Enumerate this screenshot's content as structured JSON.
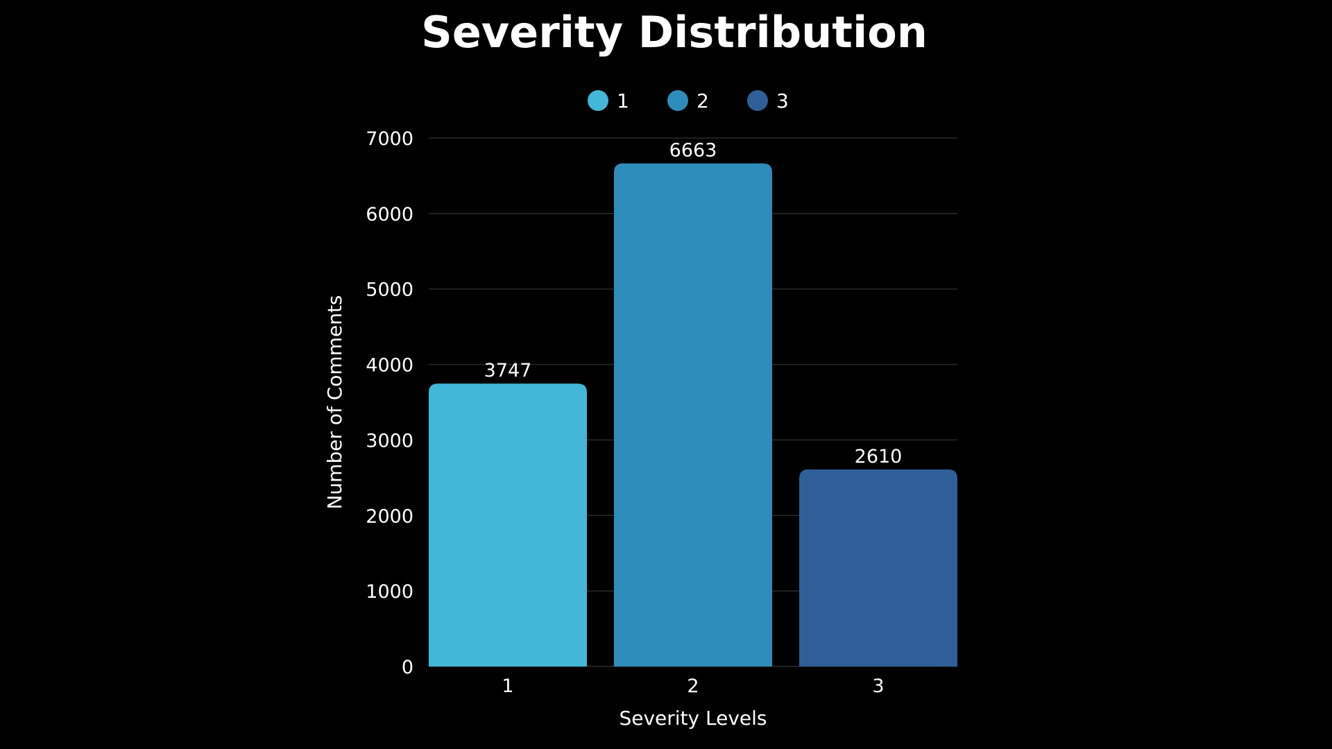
{
  "chart_data": {
    "type": "bar",
    "title": "Severity Distribution",
    "xlabel": "Severity Levels",
    "ylabel": "Number of Comments",
    "categories": [
      "1",
      "2",
      "3"
    ],
    "values": [
      3747,
      6663,
      2610
    ],
    "data_labels": [
      "3747",
      "6663",
      "2610"
    ],
    "colors": [
      "#42b7d7",
      "#2d8cba",
      "#2e5f98"
    ],
    "legend": {
      "placement": "top-center",
      "entries": [
        "1",
        "2",
        "3"
      ]
    },
    "ylim": [
      0,
      7000
    ],
    "yticks": [
      0,
      1000,
      2000,
      3000,
      4000,
      5000,
      6000,
      7000
    ],
    "ytick_labels": [
      "0",
      "1000",
      "2000",
      "3000",
      "4000",
      "5000",
      "6000",
      "7000"
    ],
    "grid": true
  }
}
